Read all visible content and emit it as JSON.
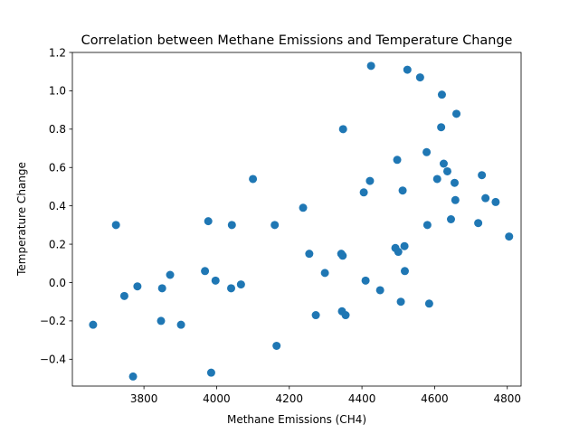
{
  "chart_data": {
    "type": "scatter",
    "title": "Correlation between Methane Emissions and Temperature Change",
    "xlabel": "Methane Emissions (CH4)",
    "ylabel": "Temperature Change",
    "xlim": [
      3603,
      4838
    ],
    "ylim": [
      -0.54,
      1.2
    ],
    "xticks": [
      3800,
      4000,
      4200,
      4400,
      4600,
      4800
    ],
    "yticks": [
      -0.4,
      -0.2,
      0.0,
      0.2,
      0.4,
      0.6,
      0.8,
      1.0,
      1.2
    ],
    "xtick_labels": [
      "3800",
      "4000",
      "4200",
      "4400",
      "4600",
      "4800"
    ],
    "ytick_labels": [
      "−0.4",
      "−0.2",
      "0.0",
      "0.2",
      "0.4",
      "0.6",
      "0.8",
      "1.0",
      "1.2"
    ],
    "grid": false,
    "legend": false,
    "marker_color": "#1f77b4",
    "points": [
      {
        "x": 3660,
        "y": -0.22
      },
      {
        "x": 3723,
        "y": 0.3
      },
      {
        "x": 3746,
        "y": -0.07
      },
      {
        "x": 3770,
        "y": -0.49
      },
      {
        "x": 3782,
        "y": -0.02
      },
      {
        "x": 3847,
        "y": -0.2
      },
      {
        "x": 3850,
        "y": -0.03
      },
      {
        "x": 3872,
        "y": 0.04
      },
      {
        "x": 3902,
        "y": -0.22
      },
      {
        "x": 3968,
        "y": 0.06
      },
      {
        "x": 3977,
        "y": 0.32
      },
      {
        "x": 3985,
        "y": -0.47
      },
      {
        "x": 3997,
        "y": 0.01
      },
      {
        "x": 4040,
        "y": -0.03
      },
      {
        "x": 4042,
        "y": 0.3
      },
      {
        "x": 4067,
        "y": -0.01
      },
      {
        "x": 4100,
        "y": 0.54
      },
      {
        "x": 4160,
        "y": 0.3
      },
      {
        "x": 4165,
        "y": -0.33
      },
      {
        "x": 4238,
        "y": 0.39
      },
      {
        "x": 4255,
        "y": 0.15
      },
      {
        "x": 4273,
        "y": -0.17
      },
      {
        "x": 4298,
        "y": 0.05
      },
      {
        "x": 4343,
        "y": 0.15
      },
      {
        "x": 4345,
        "y": -0.15
      },
      {
        "x": 4347,
        "y": 0.14
      },
      {
        "x": 4348,
        "y": 0.8
      },
      {
        "x": 4355,
        "y": -0.17
      },
      {
        "x": 4405,
        "y": 0.47
      },
      {
        "x": 4410,
        "y": 0.01
      },
      {
        "x": 4422,
        "y": 0.53
      },
      {
        "x": 4425,
        "y": 1.13
      },
      {
        "x": 4450,
        "y": -0.04
      },
      {
        "x": 4492,
        "y": 0.18
      },
      {
        "x": 4497,
        "y": 0.64
      },
      {
        "x": 4500,
        "y": 0.16
      },
      {
        "x": 4507,
        "y": -0.1
      },
      {
        "x": 4512,
        "y": 0.48
      },
      {
        "x": 4517,
        "y": 0.19
      },
      {
        "x": 4518,
        "y": 0.06
      },
      {
        "x": 4525,
        "y": 1.11
      },
      {
        "x": 4560,
        "y": 1.07
      },
      {
        "x": 4578,
        "y": 0.68
      },
      {
        "x": 4580,
        "y": 0.3
      },
      {
        "x": 4585,
        "y": -0.11
      },
      {
        "x": 4607,
        "y": 0.54
      },
      {
        "x": 4618,
        "y": 0.81
      },
      {
        "x": 4620,
        "y": 0.98
      },
      {
        "x": 4625,
        "y": 0.62
      },
      {
        "x": 4635,
        "y": 0.58
      },
      {
        "x": 4645,
        "y": 0.33
      },
      {
        "x": 4655,
        "y": 0.52
      },
      {
        "x": 4657,
        "y": 0.43
      },
      {
        "x": 4660,
        "y": 0.88
      },
      {
        "x": 4720,
        "y": 0.31
      },
      {
        "x": 4730,
        "y": 0.56
      },
      {
        "x": 4740,
        "y": 0.44
      },
      {
        "x": 4768,
        "y": 0.42
      },
      {
        "x": 4805,
        "y": 0.24
      }
    ]
  }
}
